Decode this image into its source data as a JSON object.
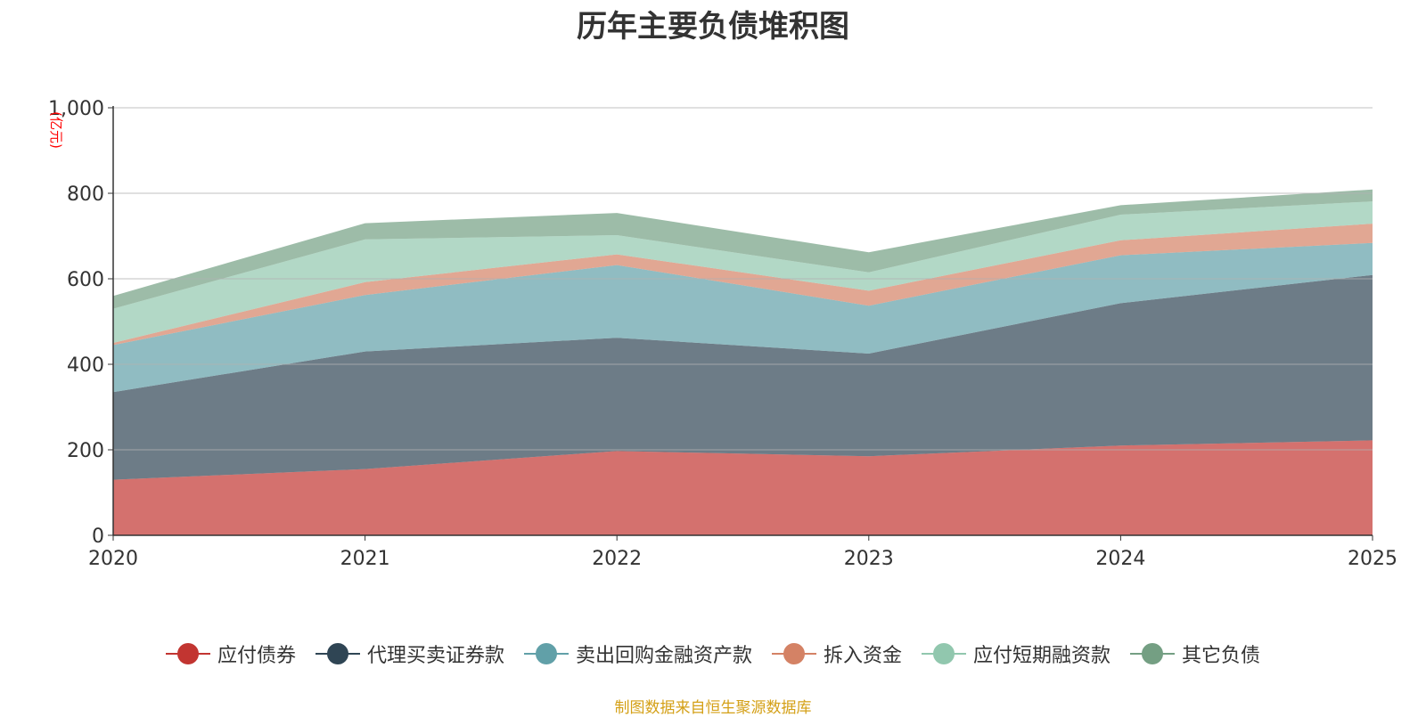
{
  "chart_data": {
    "type": "area",
    "stacked": true,
    "title": "历年主要负债堆积图",
    "ylabel": "(亿元)",
    "xlabel": "",
    "x": [
      "2020",
      "2021",
      "2022",
      "2023",
      "2024",
      "2025"
    ],
    "ylim": [
      0,
      1000
    ],
    "yticks": [
      0,
      200,
      400,
      600,
      800,
      1000
    ],
    "ytick_labels": [
      "0",
      "200",
      "400",
      "600",
      "800",
      "1,000"
    ],
    "grid": true,
    "legend_position": "bottom",
    "series": [
      {
        "name": "应付债券",
        "color": "#c23531",
        "values": [
          130,
          155,
          197,
          185,
          210,
          222
        ]
      },
      {
        "name": "代理买卖证券款",
        "color": "#2f4554",
        "values": [
          205,
          275,
          265,
          240,
          333,
          387
        ]
      },
      {
        "name": "卖出回购金融资产款",
        "color": "#61a0a8",
        "values": [
          110,
          132,
          170,
          112,
          112,
          75
        ]
      },
      {
        "name": "拆入资金",
        "color": "#d48265",
        "values": [
          5,
          30,
          25,
          35,
          35,
          45
        ]
      },
      {
        "name": "应付短期融资款",
        "color": "#91c7ae",
        "values": [
          80,
          100,
          45,
          43,
          60,
          52
        ]
      },
      {
        "name": "其它负债",
        "color": "#749f83",
        "values": [
          30,
          38,
          52,
          47,
          22,
          28
        ]
      }
    ]
  },
  "source_note": "制图数据来自恒生聚源数据库"
}
